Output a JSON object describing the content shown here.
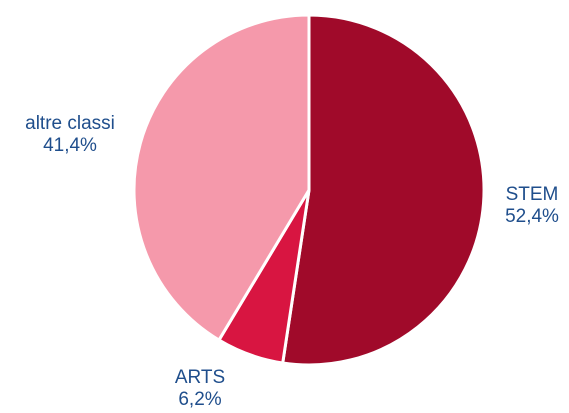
{
  "chart_data": {
    "type": "pie",
    "title": "",
    "start_angle_deg": 0,
    "direction": "clockwise",
    "slices": [
      {
        "label": "STEM",
        "value": 52.4,
        "value_label": "52,4%",
        "color": "#a00a2a"
      },
      {
        "label": "ARTS",
        "value": 6.2,
        "value_label": "6,2%",
        "color": "#d81541"
      },
      {
        "label": "altre classi",
        "value": 41.4,
        "value_label": "41,4%",
        "color": "#f599ab"
      }
    ],
    "slice_border_color": "#ffffff"
  }
}
